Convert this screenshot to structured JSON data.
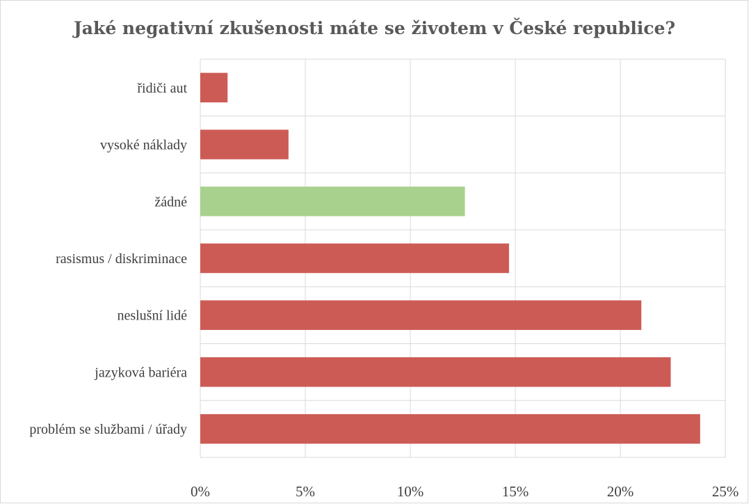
{
  "chart_data": {
    "type": "bar",
    "orientation": "horizontal",
    "title": "Jaké negativní zkušenosti máte se životem v České republice?",
    "categories": [
      "řidiči aut",
      "vysoké náklady",
      "žádné",
      "rasismus / diskriminace",
      "neslušní lidé",
      "jazyková bariéra",
      "problém se službami / úřady"
    ],
    "values": [
      1.3,
      4.2,
      12.6,
      14.7,
      21.0,
      22.4,
      23.8
    ],
    "bar_colors": [
      "#cd5b55",
      "#cd5b55",
      "#a9d18e",
      "#cd5b55",
      "#cd5b55",
      "#cd5b55",
      "#cd5b55"
    ],
    "xlim": [
      0,
      25
    ],
    "xticks": [
      0,
      5,
      10,
      15,
      20,
      25
    ],
    "xtick_labels": [
      "0%",
      "5%",
      "10%",
      "15%",
      "20%",
      "25%"
    ],
    "xlabel": "",
    "ylabel": "",
    "grid": true,
    "legend": "none"
  }
}
